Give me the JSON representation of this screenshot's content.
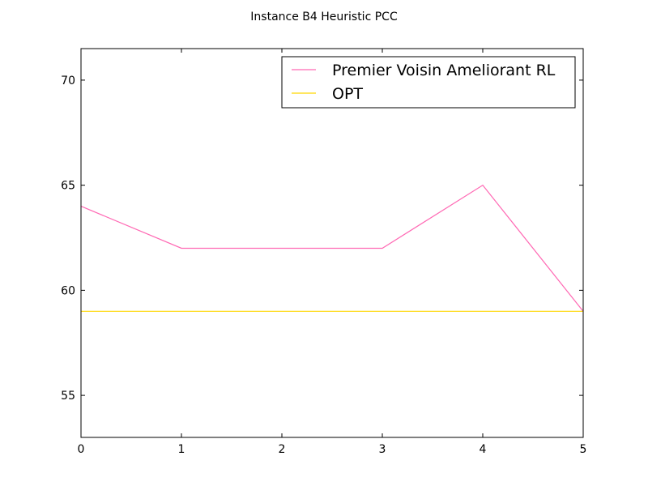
{
  "chart_data": {
    "type": "line",
    "title": "Instance B4 Heuristic PCC",
    "xlabel": "",
    "ylabel": "",
    "x": [
      0,
      1,
      2,
      3,
      4,
      5
    ],
    "xlim": [
      0,
      5
    ],
    "ylim": [
      53,
      71.5
    ],
    "xticks": [
      "0",
      "1",
      "2",
      "3",
      "4",
      "5"
    ],
    "yticks": [
      "55",
      "60",
      "65",
      "70"
    ],
    "grid": false,
    "legend_position": "top-right",
    "series": [
      {
        "name": "Premier Voisin Ameliorant RL",
        "color": "#ff69b4",
        "values": [
          64,
          62,
          62,
          62,
          65,
          59
        ]
      },
      {
        "name": "OPT",
        "color": "#ffd700",
        "values": [
          59,
          59,
          59,
          59,
          59,
          59
        ]
      }
    ]
  }
}
